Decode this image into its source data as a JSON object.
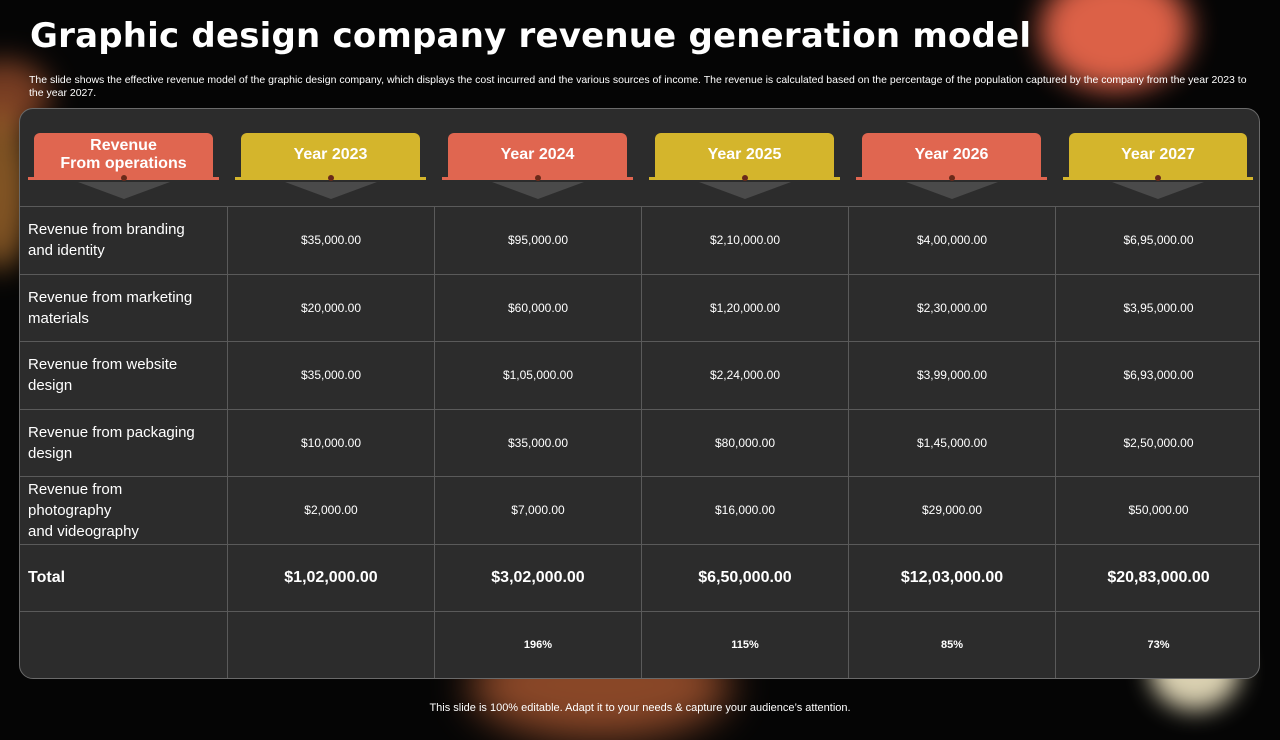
{
  "title": "Graphic design company revenue generation model",
  "subtitle": "The slide shows the effective revenue model of the graphic design company, which displays the cost incurred and the various sources of income. The revenue is calculated based on the percentage of the population captured by the company from the year 2023 to the year 2027.",
  "table": {
    "headers": [
      {
        "label": "Revenue\nFrom operations",
        "color": "#e06650"
      },
      {
        "label": "Year 2023",
        "color": "#d4b52c"
      },
      {
        "label": "Year 2024",
        "color": "#e06650"
      },
      {
        "label": "Year 2025",
        "color": "#d4b52c"
      },
      {
        "label": "Year 2026",
        "color": "#e06650"
      },
      {
        "label": "Year 2027",
        "color": "#d4b52c"
      }
    ],
    "rows": [
      {
        "label": "Revenue from branding\nand identity",
        "values": [
          "$35,000.00",
          "$95,000.00",
          "$2,10,000.00",
          "$4,00,000.00",
          "$6,95,000.00"
        ]
      },
      {
        "label": "Revenue from marketing\nmaterials",
        "values": [
          "$20,000.00",
          "$60,000.00",
          "$1,20,000.00",
          "$2,30,000.00",
          "$3,95,000.00"
        ]
      },
      {
        "label": "Revenue from website\ndesign",
        "values": [
          "$35,000.00",
          "$1,05,000.00",
          "$2,24,000.00",
          "$3,99,000.00",
          "$6,93,000.00"
        ]
      },
      {
        "label": "Revenue from packaging\ndesign",
        "values": [
          "$10,000.00",
          "$35,000.00",
          "$80,000.00",
          "$1,45,000.00",
          "$2,50,000.00"
        ]
      },
      {
        "label": "Revenue from\nphotography\nand videography",
        "values": [
          "$2,000.00",
          "$7,000.00",
          "$16,000.00",
          "$29,000.00",
          "$50,000.00"
        ]
      }
    ],
    "total": {
      "label": "Total",
      "values": [
        "$1,02,000.00",
        "$3,02,000.00",
        "$6,50,000.00",
        "$12,03,000.00",
        "$20,83,000.00"
      ]
    },
    "growth": {
      "label": "",
      "values": [
        "",
        "196%",
        "115%",
        "85%",
        "73%"
      ]
    }
  },
  "footer": "This slide is 100% editable. Adapt it to your needs & capture your audience’s attention."
}
